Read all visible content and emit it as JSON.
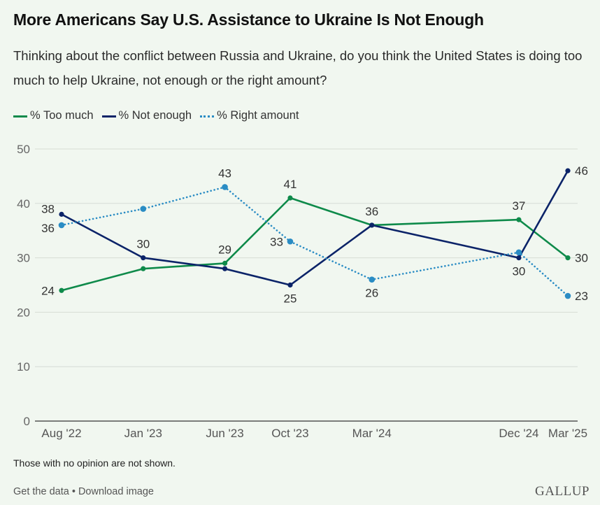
{
  "header": {
    "title": "More Americans Say U.S. Assistance to Ukraine Is Not Enough",
    "subtitle": "Thinking about the conflict between Russia and Ukraine, do you think the United States is doing too much to help Ukraine, not enough or the right amount?"
  },
  "legend": {
    "items": [
      {
        "label": "% Too much",
        "color": "#0e8a4a",
        "style": "solid"
      },
      {
        "label": "% Not enough",
        "color": "#0b2368",
        "style": "solid"
      },
      {
        "label": "% Right amount",
        "color": "#2a8cc4",
        "style": "dotted"
      }
    ]
  },
  "chart_data": {
    "type": "line",
    "title": "More Americans Say U.S. Assistance to Ukraine Is Not Enough",
    "xlabel": "",
    "ylabel": "",
    "ylim": [
      0,
      50
    ],
    "yticks": [
      0,
      10,
      20,
      30,
      40,
      50
    ],
    "grid": true,
    "legend_position": "top-left",
    "categories": [
      "Aug '22",
      "Jan '23",
      "Jun '23",
      "Oct '23",
      "Mar '24",
      "Dec '24",
      "Mar '25"
    ],
    "x_months": [
      0,
      5,
      10,
      14,
      19,
      28,
      31
    ],
    "series": [
      {
        "name": "% Too much",
        "color": "#0e8a4a",
        "style": "solid",
        "values": [
          24,
          28,
          29,
          41,
          36,
          37,
          30
        ],
        "labels": [
          "24",
          null,
          "29",
          "41",
          null,
          "37",
          "30"
        ]
      },
      {
        "name": "% Not enough",
        "color": "#0b2368",
        "style": "solid",
        "values": [
          38,
          30,
          28,
          25,
          36,
          30,
          46
        ],
        "labels": [
          "38",
          "30",
          null,
          "25",
          "36",
          "30",
          "46"
        ]
      },
      {
        "name": "% Right amount",
        "color": "#2a8cc4",
        "style": "dotted",
        "values": [
          36,
          39,
          43,
          33,
          26,
          31,
          23
        ],
        "labels": [
          "36",
          null,
          "43",
          "33",
          "26",
          null,
          "23"
        ]
      }
    ]
  },
  "footer": {
    "note": "Those with no opinion are not shown.",
    "get_data": "Get the data",
    "separator": "•",
    "download": "Download image",
    "brand": "GALLUP"
  }
}
